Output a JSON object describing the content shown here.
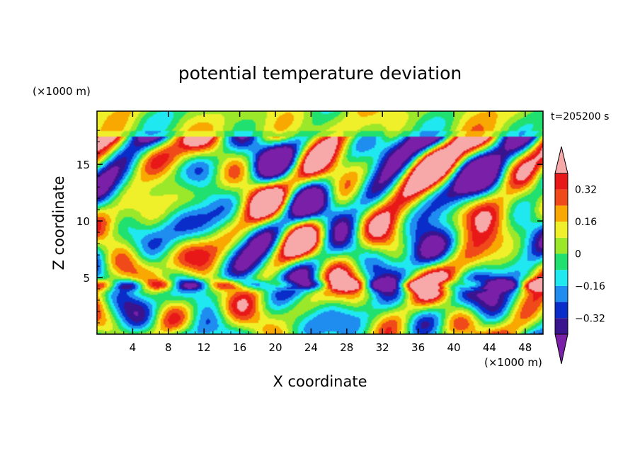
{
  "chart_data": {
    "type": "heatmap",
    "title": "potential temperature deviation",
    "xlabel": "X coordinate",
    "ylabel": "Z coordinate",
    "x_unit": "(×1000 m)",
    "y_unit": "(×1000 m)",
    "time_label": "t=205200 s",
    "xlim": [
      0,
      50
    ],
    "ylim": [
      0,
      19.7
    ],
    "x_ticks": [
      4,
      8,
      12,
      16,
      20,
      24,
      28,
      32,
      36,
      40,
      44,
      48
    ],
    "y_ticks": [
      5,
      10,
      15
    ],
    "colorbar": {
      "levels": [
        -0.4,
        -0.32,
        -0.24,
        -0.16,
        -0.08,
        0,
        0.08,
        0.16,
        0.24,
        0.32,
        0.4
      ],
      "tick_values": [
        -0.32,
        -0.16,
        0,
        0.16,
        0.32
      ],
      "tick_labels": [
        "−0.32",
        "−0.16",
        "0",
        "0.16",
        "0.32"
      ],
      "colors": [
        "#7a1fa8",
        "#3a148f",
        "#0a2cc8",
        "#1f8cf0",
        "#20e8f0",
        "#20e070",
        "#9be82a",
        "#f0f02a",
        "#f8a800",
        "#f04a1a",
        "#e81818",
        "#f7a8a8"
      ],
      "extend": "both"
    },
    "field_description": "pattern of alternating warm/cold cells; strong layer near z=4-5 km"
  }
}
